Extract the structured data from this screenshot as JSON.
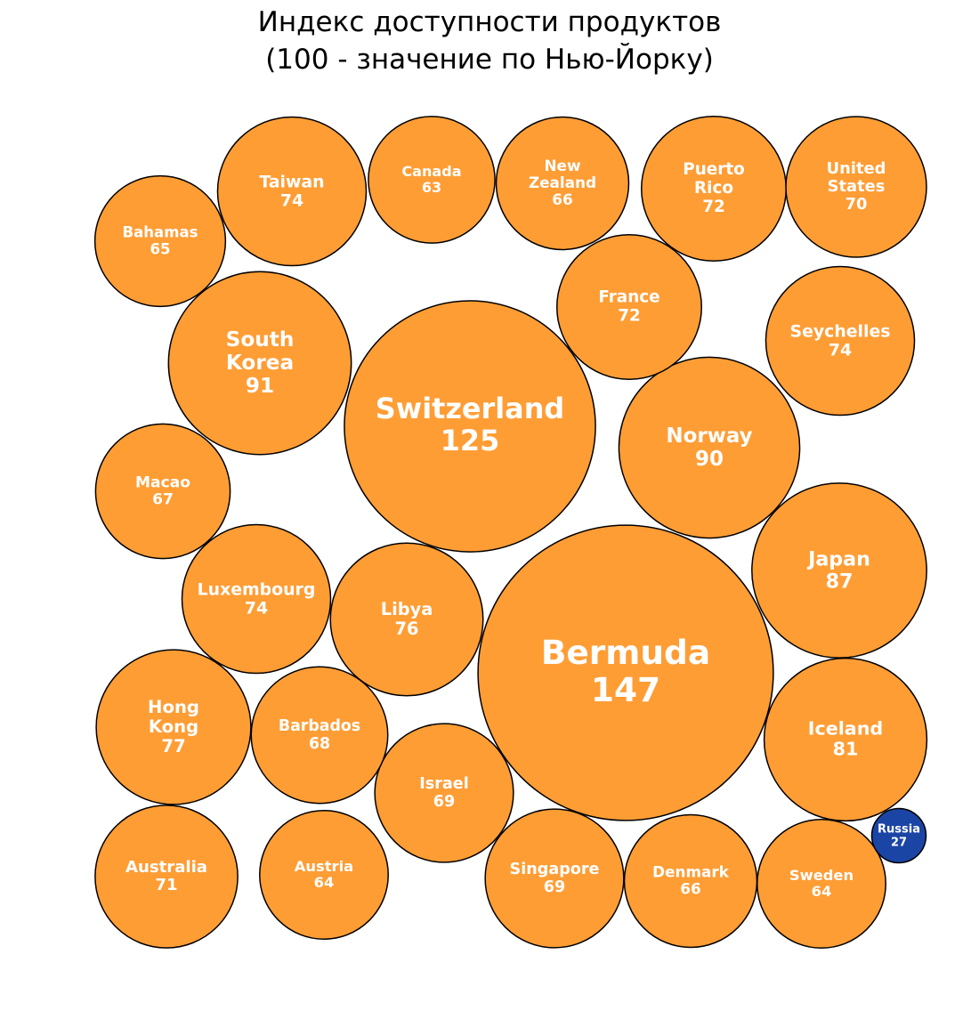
{
  "chart_data": {
    "type": "bubble",
    "title_line1": "Индекс доступности продуктов",
    "title_line2": "(100 - значение по Нью-Йорку)",
    "colors": {
      "default": "#FF9D35",
      "highlight": "#1B45A5",
      "stroke": "#000000",
      "label": "#FFFFFF"
    },
    "points": [
      {
        "name": "Bermuda",
        "label": "Bermuda",
        "value": 147
      },
      {
        "name": "Switzerland",
        "label": "Switzerland",
        "value": 125
      },
      {
        "name": "South Korea",
        "label": "South\nKorea",
        "value": 91
      },
      {
        "name": "Norway",
        "label": "Norway",
        "value": 90
      },
      {
        "name": "Japan",
        "label": "Japan",
        "value": 87
      },
      {
        "name": "Iceland",
        "label": "Iceland",
        "value": 81
      },
      {
        "name": "Hong Kong",
        "label": "Hong\nKong",
        "value": 77
      },
      {
        "name": "Libya",
        "label": "Libya",
        "value": 76
      },
      {
        "name": "Taiwan",
        "label": "Taiwan",
        "value": 74
      },
      {
        "name": "Seychelles",
        "label": "Seychelles",
        "value": 74
      },
      {
        "name": "Luxembourg",
        "label": "Luxembourg",
        "value": 74
      },
      {
        "name": "Puerto Rico",
        "label": "Puerto\nRico",
        "value": 72
      },
      {
        "name": "France",
        "label": "France",
        "value": 72
      },
      {
        "name": "Australia",
        "label": "Australia",
        "value": 71
      },
      {
        "name": "United States",
        "label": "United\nStates",
        "value": 70
      },
      {
        "name": "Singapore",
        "label": "Singapore",
        "value": 69
      },
      {
        "name": "Israel",
        "label": "Israel",
        "value": 69
      },
      {
        "name": "Barbados",
        "label": "Barbados",
        "value": 68
      },
      {
        "name": "Macao",
        "label": "Macao",
        "value": 67
      },
      {
        "name": "New Zealand",
        "label": "New\nZealand",
        "value": 66
      },
      {
        "name": "Denmark",
        "label": "Denmark",
        "value": 66
      },
      {
        "name": "Bahamas",
        "label": "Bahamas",
        "value": 65
      },
      {
        "name": "Austria",
        "label": "Austria",
        "value": 64
      },
      {
        "name": "Sweden",
        "label": "Sweden",
        "value": 64
      },
      {
        "name": "Canada",
        "label": "Canada",
        "value": 63
      },
      {
        "name": "Russia",
        "label": "Russia",
        "value": 27,
        "highlight": true
      }
    ]
  }
}
